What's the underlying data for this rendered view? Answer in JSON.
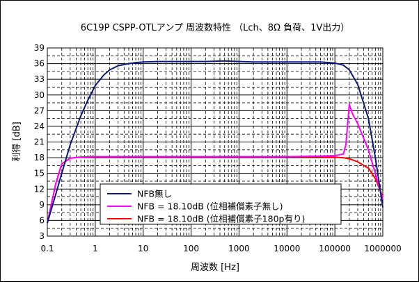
{
  "chart_data": {
    "type": "line",
    "title": "6C19P CSPP-OTLアンプ 周波数特性 （Lch、8Ω 負荷、1V出力）",
    "xlabel": "周波数 [Hz]",
    "ylabel": "利得 [dB]",
    "xscale": "log",
    "xlim": [
      0.1,
      1000000
    ],
    "ylim": [
      3,
      39
    ],
    "x_ticks": [
      "0.1",
      "1",
      "10",
      "100",
      "1000",
      "10000",
      "100000",
      "1000000"
    ],
    "y_ticks": [
      "3",
      "6",
      "9",
      "12",
      "15",
      "18",
      "21",
      "24",
      "27",
      "30",
      "33",
      "36",
      "39"
    ],
    "grid": true,
    "legend_position": "bottom-center",
    "series": [
      {
        "name": "NFB無し",
        "color": "#0a1a78",
        "x": [
          0.1,
          0.15,
          0.2,
          0.3,
          0.5,
          0.7,
          1,
          1.5,
          2,
          3,
          5,
          7,
          10,
          20,
          50,
          100,
          200,
          500,
          1000,
          2000,
          5000,
          10000,
          20000,
          50000,
          100000,
          150000,
          200000,
          300000,
          500000,
          700000,
          1000000
        ],
        "y": [
          5.5,
          11,
          15,
          20.5,
          26,
          29,
          31.8,
          33.8,
          34.8,
          35.6,
          36,
          36.2,
          36.3,
          36.4,
          36.4,
          36.4,
          36.4,
          36.5,
          36.4,
          36.3,
          36.3,
          36.3,
          36.3,
          36.3,
          36.1,
          35.7,
          34.8,
          32,
          25.5,
          18,
          8.5
        ]
      },
      {
        "name": "NFB = 18.10dB (位相補償素子無し)",
        "color": "#ff00ff",
        "x": [
          0.1,
          0.15,
          0.2,
          0.3,
          0.5,
          1,
          10,
          100,
          1000,
          10000,
          50000,
          100000,
          150000,
          170000,
          200000,
          230000,
          300000,
          500000,
          700000,
          1000000
        ],
        "y": [
          5.5,
          13,
          16.8,
          17.9,
          18.1,
          18.2,
          18.2,
          18.2,
          18.2,
          18.2,
          18.3,
          18.4,
          18.7,
          20.5,
          28.2,
          26.5,
          24.5,
          19.5,
          15,
          10
        ]
      },
      {
        "name": "NFB = 18.10dB (位相補償素子180p有り)",
        "color": "#ff0000",
        "x": [
          0.1,
          0.15,
          0.2,
          0.3,
          0.5,
          1,
          10,
          100,
          1000,
          10000,
          50000,
          100000,
          150000,
          200000,
          300000,
          500000,
          700000,
          1000000
        ],
        "y": [
          5.5,
          13,
          16.8,
          17.9,
          18.1,
          18.2,
          18.2,
          18.2,
          18.2,
          18.2,
          18.2,
          18.1,
          18,
          17.8,
          17.2,
          16,
          14,
          10.5
        ]
      }
    ]
  }
}
